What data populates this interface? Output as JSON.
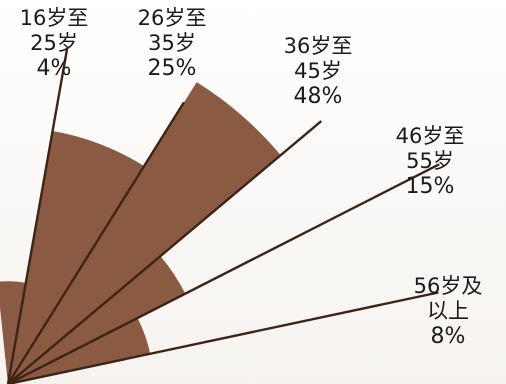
{
  "chart_data": {
    "type": "radial-bar",
    "title": "",
    "categories": [
      {
        "group": "16岁至",
        "range": "25岁",
        "value_label": "4%"
      },
      {
        "group": "26岁至",
        "range": "35岁",
        "value_label": "25%"
      },
      {
        "group": "36岁至",
        "range": "45岁",
        "value_label": "48%"
      },
      {
        "group": "46岁至",
        "range": "55岁",
        "value_label": "15%"
      },
      {
        "group": "56岁及",
        "range": "以上",
        "value_label": "8%"
      }
    ],
    "values": [
      4,
      25,
      48,
      15,
      8
    ],
    "unit": "%",
    "colors": {
      "wedge": "#8a5a42",
      "line": "#3c2416"
    }
  }
}
